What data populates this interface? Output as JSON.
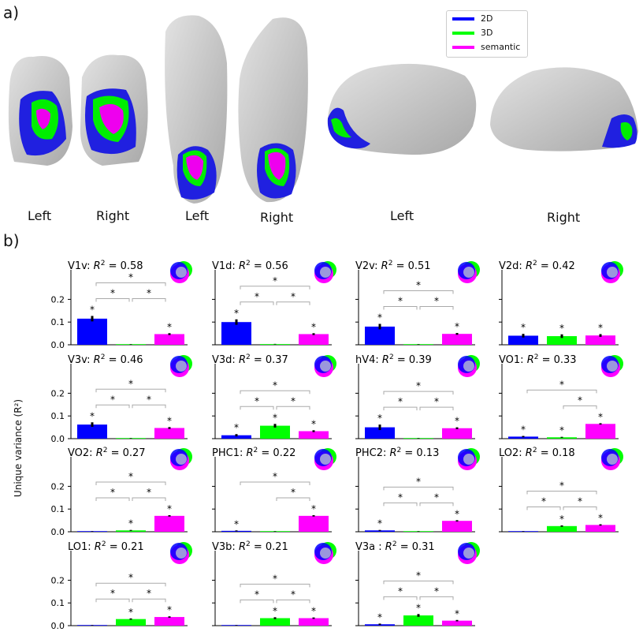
{
  "panel_a_label": "a)",
  "panel_b_label": "b)",
  "brain_labels": [
    "Left",
    "Right",
    "Left",
    "Right",
    "Left",
    "Right"
  ],
  "legend": [
    {
      "label": "2D",
      "color": "#0000ff"
    },
    {
      "label": "3D",
      "color": "#00ff00"
    },
    {
      "label": "semantic",
      "color": "#ff00ff"
    }
  ],
  "ylabel": "Unique variance (R²)",
  "colors": {
    "2D": "#0000ff",
    "3D": "#00ff00",
    "semantic": "#ff00ff",
    "surface": "#c4c4c4"
  },
  "chart_data": [
    {
      "type": "bar",
      "roi": "V1v",
      "r2": "0.58",
      "categories": [
        "2D",
        "3D",
        "semantic"
      ],
      "values": [
        0.115,
        0.002,
        0.047
      ],
      "errors": [
        0.012,
        0.001,
        0.004
      ],
      "ylim": [
        0,
        0.33
      ],
      "yticks": [
        "0.0",
        "0.1",
        "0.2"
      ],
      "bar_stars": [
        true,
        false,
        true
      ],
      "brackets": [
        [
          0,
          1
        ],
        [
          1,
          2
        ],
        [
          0,
          2
        ]
      ]
    },
    {
      "type": "bar",
      "roi": "V1d",
      "r2": "0.56",
      "categories": [
        "2D",
        "3D",
        "semantic"
      ],
      "values": [
        0.1,
        0.003,
        0.047
      ],
      "errors": [
        0.012,
        0.001,
        0.004
      ],
      "ylim": [
        0,
        0.33
      ],
      "yticks": [],
      "bar_stars": [
        true,
        false,
        true
      ],
      "brackets": [
        [
          0,
          1
        ],
        [
          1,
          2
        ],
        [
          0,
          2
        ]
      ]
    },
    {
      "type": "bar",
      "roi": "V2v",
      "r2": "0.51",
      "categories": [
        "2D",
        "3D",
        "semantic"
      ],
      "values": [
        0.08,
        0.002,
        0.048
      ],
      "errors": [
        0.012,
        0.001,
        0.004
      ],
      "ylim": [
        0,
        0.33
      ],
      "yticks": [],
      "bar_stars": [
        true,
        false,
        true
      ],
      "brackets": [
        [
          0,
          1
        ],
        [
          1,
          2
        ],
        [
          0,
          2
        ]
      ]
    },
    {
      "type": "bar",
      "roi": "V2d",
      "r2": "0.42",
      "categories": [
        "2D",
        "3D",
        "semantic"
      ],
      "values": [
        0.04,
        0.038,
        0.041
      ],
      "errors": [
        0.008,
        0.008,
        0.006
      ],
      "ylim": [
        0,
        0.33
      ],
      "yticks": [],
      "bar_stars": [
        true,
        true,
        true
      ],
      "brackets": []
    },
    {
      "type": "bar",
      "roi": "V3v",
      "r2": "0.46",
      "categories": [
        "2D",
        "3D",
        "semantic"
      ],
      "values": [
        0.062,
        0.002,
        0.047
      ],
      "errors": [
        0.01,
        0.001,
        0.004
      ],
      "ylim": [
        0,
        0.33
      ],
      "yticks": [
        "0.0",
        "0.1",
        "0.2"
      ],
      "bar_stars": [
        true,
        false,
        true
      ],
      "brackets": [
        [
          0,
          1
        ],
        [
          1,
          2
        ],
        [
          0,
          2
        ]
      ]
    },
    {
      "type": "bar",
      "roi": "V3d",
      "r2": "0.37",
      "categories": [
        "2D",
        "3D",
        "semantic"
      ],
      "values": [
        0.015,
        0.057,
        0.033
      ],
      "errors": [
        0.005,
        0.008,
        0.004
      ],
      "ylim": [
        0,
        0.33
      ],
      "yticks": [],
      "bar_stars": [
        true,
        true,
        true
      ],
      "brackets": [
        [
          0,
          1
        ],
        [
          1,
          2
        ],
        [
          0,
          2
        ]
      ]
    },
    {
      "type": "bar",
      "roi": "hV4",
      "r2": "0.39",
      "categories": [
        "2D",
        "3D",
        "semantic"
      ],
      "values": [
        0.05,
        0.002,
        0.046
      ],
      "errors": [
        0.012,
        0.001,
        0.004
      ],
      "ylim": [
        0,
        0.33
      ],
      "yticks": [],
      "bar_stars": [
        true,
        false,
        true
      ],
      "brackets": [
        [
          0,
          1
        ],
        [
          1,
          2
        ],
        [
          0,
          2
        ]
      ]
    },
    {
      "type": "bar",
      "roi": "VO1",
      "r2": "0.33",
      "categories": [
        "2D",
        "3D",
        "semantic"
      ],
      "values": [
        0.009,
        0.006,
        0.065
      ],
      "errors": [
        0.003,
        0.002,
        0.003
      ],
      "ylim": [
        0,
        0.33
      ],
      "yticks": [],
      "bar_stars": [
        true,
        true,
        true
      ],
      "brackets": [
        [
          1,
          2
        ],
        [
          0,
          2
        ]
      ]
    },
    {
      "type": "bar",
      "roi": "VO2",
      "r2": "0.27",
      "categories": [
        "2D",
        "3D",
        "semantic"
      ],
      "values": [
        0.002,
        0.006,
        0.07
      ],
      "errors": [
        0.001,
        0.002,
        0.003
      ],
      "ylim": [
        0,
        0.33
      ],
      "yticks": [
        "0.0",
        "0.1",
        "0.2"
      ],
      "bar_stars": [
        false,
        true,
        true
      ],
      "brackets": [
        [
          0,
          1
        ],
        [
          1,
          2
        ],
        [
          0,
          2
        ]
      ]
    },
    {
      "type": "bar",
      "roi": "PHC1",
      "r2": "0.22",
      "categories": [
        "2D",
        "3D",
        "semantic"
      ],
      "values": [
        0.004,
        0.002,
        0.07
      ],
      "errors": [
        0.002,
        0.001,
        0.003
      ],
      "ylim": [
        0,
        0.33
      ],
      "yticks": [],
      "bar_stars": [
        true,
        false,
        true
      ],
      "brackets": [
        [
          1,
          2
        ],
        [
          0,
          2
        ]
      ]
    },
    {
      "type": "bar",
      "roi": "PHC2",
      "r2": "0.13",
      "categories": [
        "2D",
        "3D",
        "semantic"
      ],
      "values": [
        0.006,
        0.002,
        0.048
      ],
      "errors": [
        0.002,
        0.001,
        0.003
      ],
      "ylim": [
        0,
        0.33
      ],
      "yticks": [],
      "bar_stars": [
        true,
        false,
        true
      ],
      "brackets": [
        [
          0,
          1
        ],
        [
          1,
          2
        ],
        [
          0,
          2
        ]
      ]
    },
    {
      "type": "bar",
      "roi": "LO2",
      "r2": "0.18",
      "categories": [
        "2D",
        "3D",
        "semantic"
      ],
      "values": [
        0.002,
        0.025,
        0.03
      ],
      "errors": [
        0.001,
        0.003,
        0.003
      ],
      "ylim": [
        0,
        0.33
      ],
      "yticks": [],
      "bar_stars": [
        false,
        true,
        true
      ],
      "brackets": [
        [
          0,
          1
        ],
        [
          1,
          2
        ],
        [
          0,
          2
        ]
      ]
    },
    {
      "type": "bar",
      "roi": "LO1",
      "r2": "0.21",
      "categories": [
        "2D",
        "3D",
        "semantic"
      ],
      "values": [
        0.002,
        0.029,
        0.038
      ],
      "errors": [
        0.001,
        0.003,
        0.003
      ],
      "ylim": [
        0,
        0.33
      ],
      "yticks": [
        "0.0",
        "0.1",
        "0.2"
      ],
      "bar_stars": [
        false,
        true,
        true
      ],
      "brackets": [
        [
          0,
          1
        ],
        [
          1,
          2
        ],
        [
          0,
          2
        ]
      ]
    },
    {
      "type": "bar",
      "roi": "V3b",
      "r2": "0.21",
      "categories": [
        "2D",
        "3D",
        "semantic"
      ],
      "values": [
        0.002,
        0.033,
        0.033
      ],
      "errors": [
        0.001,
        0.004,
        0.003
      ],
      "ylim": [
        0,
        0.33
      ],
      "yticks": [],
      "bar_stars": [
        false,
        true,
        true
      ],
      "brackets": [
        [
          0,
          1
        ],
        [
          1,
          2
        ],
        [
          0,
          2
        ]
      ]
    },
    {
      "type": "bar",
      "roi": "V3a ",
      "r2": "0.31",
      "categories": [
        "2D",
        "3D",
        "semantic"
      ],
      "values": [
        0.006,
        0.045,
        0.022
      ],
      "errors": [
        0.003,
        0.006,
        0.003
      ],
      "ylim": [
        0,
        0.33
      ],
      "yticks": [],
      "bar_stars": [
        true,
        true,
        true
      ],
      "brackets": [
        [
          0,
          1
        ],
        [
          1,
          2
        ],
        [
          0,
          2
        ]
      ]
    }
  ]
}
